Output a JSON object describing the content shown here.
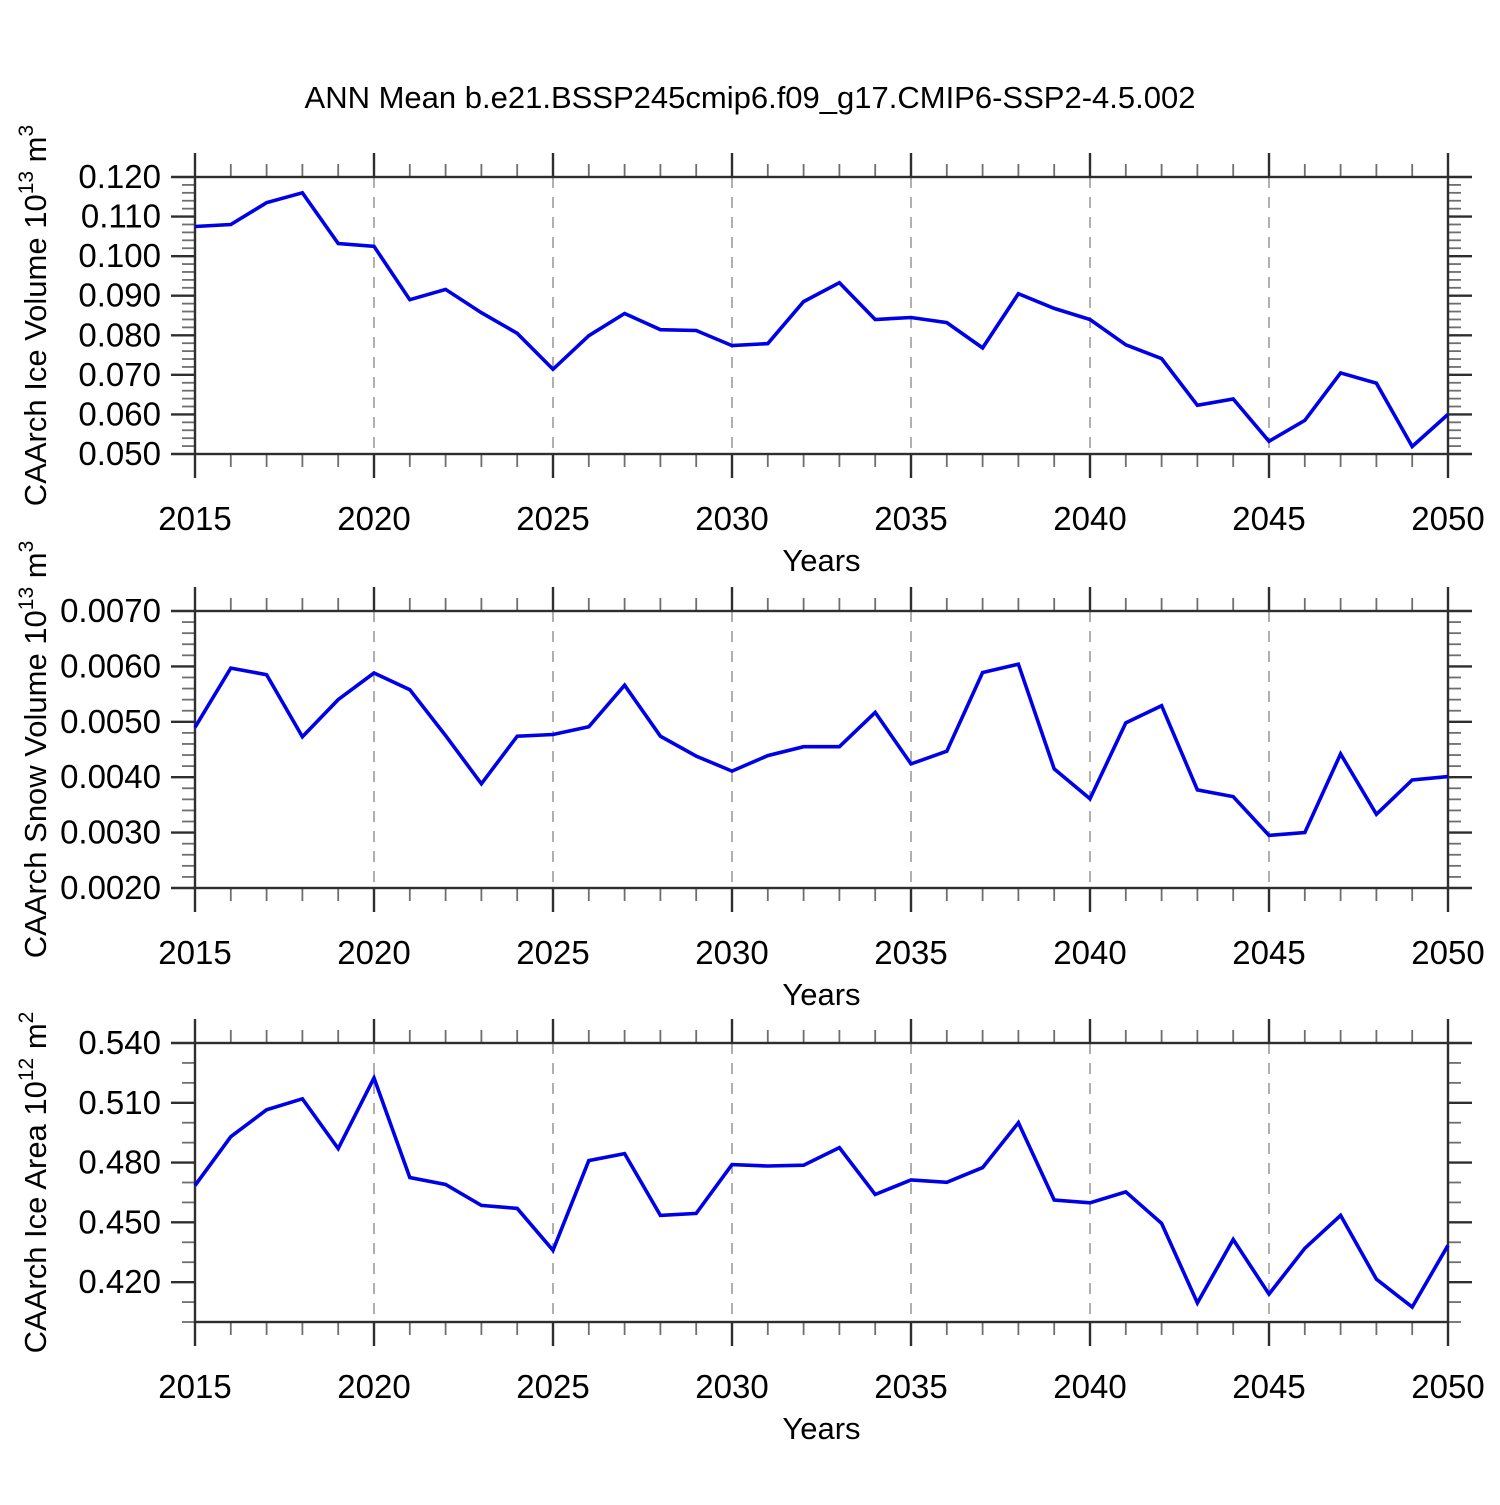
{
  "title": "ANN Mean b.e21.BSSP245cmip6.f09_g17.CMIP6-SSP2-4.5.002",
  "colors": {
    "line": "#0000e8",
    "frame": "#2e2e2e",
    "grid": "#b0b0b0",
    "text": "#000000"
  },
  "years": [
    2015,
    2016,
    2017,
    2018,
    2019,
    2020,
    2021,
    2022,
    2023,
    2024,
    2025,
    2026,
    2027,
    2028,
    2029,
    2030,
    2031,
    2032,
    2033,
    2034,
    2035,
    2036,
    2037,
    2038,
    2039,
    2040,
    2041,
    2042,
    2043,
    2044,
    2045,
    2046,
    2047,
    2048,
    2049,
    2050
  ],
  "chart_data": [
    {
      "id": "caarch-ice-volume",
      "type": "line",
      "ylabel": {
        "text": "CAArch Ice Volume 10",
        "sup1": "13",
        "mid": " m",
        "sup2": "3"
      },
      "xlabel": "Years",
      "xlim": [
        2015,
        2050
      ],
      "ylim": [
        0.05,
        0.12
      ],
      "x_major": [
        2015,
        2020,
        2025,
        2030,
        2035,
        2040,
        2045,
        2050
      ],
      "x_major_labels": [
        "2015",
        "2020",
        "2025",
        "2030",
        "2035",
        "2040",
        "2045",
        "2050"
      ],
      "x_minor_step": 1,
      "grid_x": [
        2020,
        2025,
        2030,
        2035,
        2040,
        2045
      ],
      "y_major": [
        0.05,
        0.06,
        0.07,
        0.08,
        0.09,
        0.1,
        0.11,
        0.12
      ],
      "y_major_labels": [
        "0.050",
        "0.060",
        "0.070",
        "0.080",
        "0.090",
        "0.100",
        "0.110",
        "0.120"
      ],
      "y_minor_step": 0.002,
      "values": [
        0.1075,
        0.108,
        0.1135,
        0.116,
        0.1032,
        0.1025,
        0.089,
        0.0916,
        0.0857,
        0.0805,
        0.0714,
        0.0799,
        0.0855,
        0.0814,
        0.0812,
        0.0774,
        0.0779,
        0.0885,
        0.0933,
        0.084,
        0.0845,
        0.0832,
        0.0768,
        0.0905,
        0.0868,
        0.084,
        0.0776,
        0.0741,
        0.0623,
        0.0639,
        0.0532,
        0.0585,
        0.0705,
        0.0679,
        0.0519,
        0.06
      ]
    },
    {
      "id": "caarch-snow-volume",
      "type": "line",
      "ylabel": {
        "text": "CAArch Snow Volume 10",
        "sup1": "13",
        "mid": " m",
        "sup2": "3"
      },
      "xlabel": "Years",
      "xlim": [
        2015,
        2050
      ],
      "ylim": [
        0.002,
        0.007
      ],
      "x_major": [
        2015,
        2020,
        2025,
        2030,
        2035,
        2040,
        2045,
        2050
      ],
      "x_major_labels": [
        "2015",
        "2020",
        "2025",
        "2030",
        "2035",
        "2040",
        "2045",
        "2050"
      ],
      "x_minor_step": 1,
      "grid_x": [
        2020,
        2025,
        2030,
        2035,
        2040,
        2045
      ],
      "y_major": [
        0.002,
        0.003,
        0.004,
        0.005,
        0.006,
        0.007
      ],
      "y_major_labels": [
        "0.0020",
        "0.0030",
        "0.0040",
        "0.0050",
        "0.0060",
        "0.0070"
      ],
      "y_minor_step": 0.0002,
      "values": [
        0.0049,
        0.00597,
        0.00585,
        0.00473,
        0.0054,
        0.00588,
        0.00558,
        0.00475,
        0.00388,
        0.00474,
        0.00477,
        0.00491,
        0.00566,
        0.00474,
        0.00438,
        0.00411,
        0.00439,
        0.00455,
        0.00455,
        0.00517,
        0.00424,
        0.00447,
        0.00589,
        0.00604,
        0.00415,
        0.00361,
        0.00498,
        0.00529,
        0.00377,
        0.00365,
        0.00295,
        0.003,
        0.00442,
        0.00333,
        0.00395,
        0.00401
      ]
    },
    {
      "id": "caarch-ice-area",
      "type": "line",
      "ylabel": {
        "text": "CAArch Ice Area 10",
        "sup1": "12",
        "mid": " m",
        "sup2": "2"
      },
      "xlabel": "Years",
      "xlim": [
        2015,
        2050
      ],
      "ylim": [
        0.4,
        0.54
      ],
      "x_major": [
        2015,
        2020,
        2025,
        2030,
        2035,
        2040,
        2045,
        2050
      ],
      "x_major_labels": [
        "2015",
        "2020",
        "2025",
        "2030",
        "2035",
        "2040",
        "2045",
        "2050"
      ],
      "x_minor_step": 1,
      "grid_x": [
        2020,
        2025,
        2030,
        2035,
        2040,
        2045
      ],
      "y_major": [
        0.42,
        0.45,
        0.48,
        0.51,
        0.54
      ],
      "y_major_labels": [
        "0.420",
        "0.450",
        "0.480",
        "0.510",
        "0.540"
      ],
      "y_minor_step": 0.01,
      "values": [
        0.4685,
        0.493,
        0.5065,
        0.512,
        0.487,
        0.5225,
        0.4725,
        0.469,
        0.4585,
        0.457,
        0.436,
        0.481,
        0.4845,
        0.4535,
        0.4545,
        0.479,
        0.4783,
        0.4787,
        0.4875,
        0.464,
        0.4713,
        0.4701,
        0.4775,
        0.5,
        0.4612,
        0.4598,
        0.4653,
        0.4495,
        0.4096,
        0.4414,
        0.414,
        0.437,
        0.4535,
        0.4215,
        0.4075,
        0.4385
      ]
    }
  ]
}
